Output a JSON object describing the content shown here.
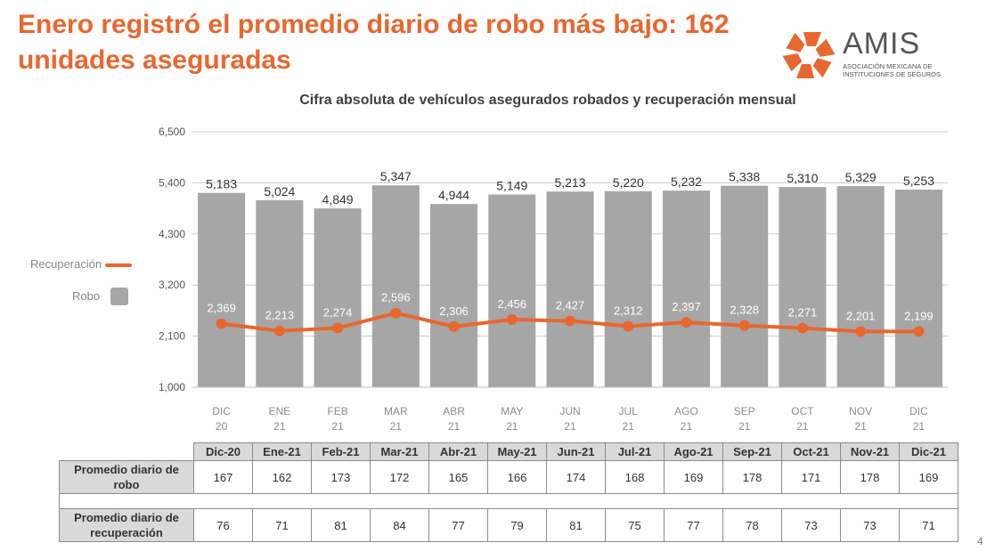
{
  "page": {
    "title": "Enero registró el promedio diario de robo más bajo: 162 unidades aseguradas",
    "page_number": "4"
  },
  "logo": {
    "name": "AMIS",
    "subtitle": "ASOCIACIÓN MEXICANA DE INSTITUCIONES DE SEGUROS"
  },
  "colors": {
    "accent": "#e8672f",
    "bar": "#a6a6a6",
    "grid": "#cccccc"
  },
  "chart_data": {
    "type": "bar",
    "title": "Cifra absoluta de vehículos asegurados robados y recuperación mensual",
    "categories": [
      [
        "DIC",
        "20"
      ],
      [
        "ENE",
        "21"
      ],
      [
        "FEB",
        "21"
      ],
      [
        "MAR",
        "21"
      ],
      [
        "ABR",
        "21"
      ],
      [
        "MAY",
        "21"
      ],
      [
        "JUN",
        "21"
      ],
      [
        "JUL",
        "21"
      ],
      [
        "AGO",
        "21"
      ],
      [
        "SEP",
        "21"
      ],
      [
        "OCT",
        "21"
      ],
      [
        "NOV",
        "21"
      ],
      [
        "DIC",
        "21"
      ]
    ],
    "series": [
      {
        "name": "Robo",
        "type": "bar",
        "values": [
          5183,
          5024,
          4849,
          5347,
          4944,
          5149,
          5213,
          5220,
          5232,
          5338,
          5310,
          5329,
          5253
        ],
        "labels": [
          "5,183",
          "5,024",
          "4,849",
          "5,347",
          "4,944",
          "5,149",
          "5,213",
          "5,220",
          "5,232",
          "5,338",
          "5,310",
          "5,329",
          "5,253"
        ]
      },
      {
        "name": "Recuperación",
        "type": "line",
        "values": [
          2369,
          2213,
          2274,
          2596,
          2306,
          2456,
          2427,
          2312,
          2397,
          2328,
          2271,
          2201,
          2199
        ],
        "labels": [
          "2,369",
          "2,213",
          "2,274",
          "2,596",
          "2,306",
          "2,456",
          "2,427",
          "2,312",
          "2,397",
          "2,328",
          "2,271",
          "2,201",
          "2,199"
        ]
      }
    ],
    "ylim": [
      1000,
      6500
    ],
    "yticks": [
      "1,000",
      "2,100",
      "3,200",
      "4,300",
      "5,400",
      "6,500"
    ],
    "ytick_values": [
      1000,
      2100,
      3200,
      4300,
      5400,
      6500
    ],
    "grid": true,
    "legend": "left"
  },
  "table": {
    "months": [
      "Dic-20",
      "Ene-21",
      "Feb-21",
      "Mar-21",
      "Abr-21",
      "May-21",
      "Jun-21",
      "Jul-21",
      "Ago-21",
      "Sep-21",
      "Oct-21",
      "Nov-21",
      "Dic-21"
    ],
    "rows": [
      {
        "label_lines": [
          "Promedio diario de",
          "robo"
        ],
        "values": [
          "167",
          "162",
          "173",
          "172",
          "165",
          "166",
          "174",
          "168",
          "169",
          "178",
          "171",
          "178",
          "169"
        ]
      },
      {
        "label_lines": [
          "Promedio diario de",
          "recuperación"
        ],
        "values": [
          "76",
          "71",
          "81",
          "84",
          "77",
          "79",
          "81",
          "75",
          "77",
          "78",
          "73",
          "73",
          "71"
        ]
      }
    ]
  }
}
